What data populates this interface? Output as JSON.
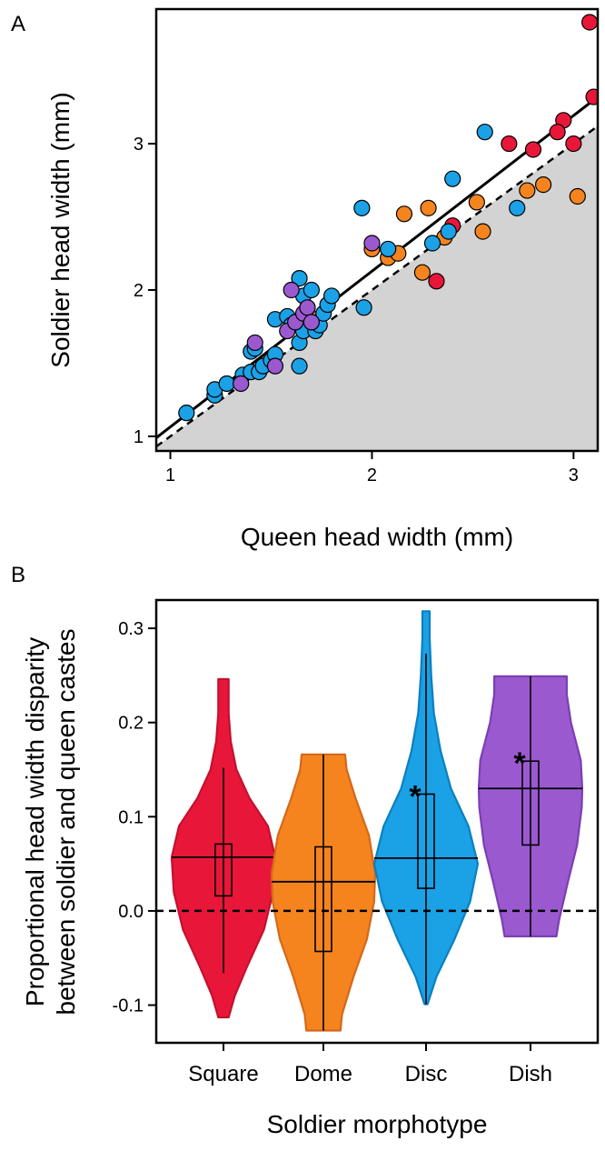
{
  "panels": {
    "a_label": "A",
    "b_label": "B"
  },
  "chart_data": [
    {
      "type": "scatter",
      "title": "",
      "xlabel": "Queen head width (mm)",
      "ylabel": "Soldier head width (mm)",
      "xlim": [
        0.93,
        3.12
      ],
      "ylim": [
        0.9,
        3.92
      ],
      "x_ticks": [
        "1",
        "2",
        "3"
      ],
      "y_ticks": [
        "1",
        "2",
        "3"
      ],
      "shaded_region": "below 1:1 line (y = x), grey",
      "reference_line": {
        "style": "dashed",
        "slope": 1,
        "intercept": 0
      },
      "fit_line": {
        "style": "solid",
        "x": [
          0.93,
          3.12
        ],
        "y": [
          0.99,
          3.32
        ]
      },
      "colors": {
        "Square": "#e8173a",
        "Dome": "#f5841f",
        "Disc": "#1aa1e6",
        "Dish": "#9b59d0"
      },
      "series": [
        {
          "group": "Square",
          "points": [
            [
              3.08,
              3.83
            ],
            [
              3.1,
              3.32
            ],
            [
              2.95,
              3.16
            ],
            [
              2.92,
              3.08
            ],
            [
              2.68,
              3.0
            ],
            [
              2.8,
              2.96
            ],
            [
              3.0,
              3.0
            ],
            [
              2.4,
              2.44
            ],
            [
              2.32,
              2.06
            ]
          ]
        },
        {
          "group": "Dome",
          "points": [
            [
              2.77,
              2.68
            ],
            [
              2.85,
              2.72
            ],
            [
              3.02,
              2.64
            ],
            [
              2.52,
              2.6
            ],
            [
              2.16,
              2.52
            ],
            [
              2.28,
              2.56
            ],
            [
              2.55,
              2.4
            ],
            [
              2.36,
              2.36
            ],
            [
              2.25,
              2.12
            ],
            [
              2.0,
              2.28
            ],
            [
              2.08,
              2.22
            ],
            [
              2.13,
              2.25
            ],
            [
              1.72,
              1.8
            ]
          ]
        },
        {
          "group": "Disc",
          "points": [
            [
              1.08,
              1.16
            ],
            [
              1.22,
              1.28
            ],
            [
              1.22,
              1.32
            ],
            [
              1.28,
              1.36
            ],
            [
              1.36,
              1.42
            ],
            [
              1.4,
              1.44
            ],
            [
              1.44,
              1.44
            ],
            [
              1.46,
              1.48
            ],
            [
              1.5,
              1.52
            ],
            [
              1.52,
              1.56
            ],
            [
              1.4,
              1.58
            ],
            [
              1.42,
              1.6
            ],
            [
              1.52,
              1.8
            ],
            [
              1.58,
              1.82
            ],
            [
              1.6,
              1.76
            ],
            [
              1.64,
              1.48
            ],
            [
              1.64,
              1.64
            ],
            [
              1.66,
              1.72
            ],
            [
              1.68,
              1.88
            ],
            [
              1.66,
              1.96
            ],
            [
              1.64,
              2.08
            ],
            [
              1.7,
              2.0
            ],
            [
              1.72,
              1.72
            ],
            [
              1.74,
              1.76
            ],
            [
              1.76,
              1.84
            ],
            [
              1.78,
              1.9
            ],
            [
              1.8,
              1.96
            ],
            [
              1.96,
              1.88
            ],
            [
              1.95,
              2.56
            ],
            [
              2.08,
              2.28
            ],
            [
              2.3,
              2.32
            ],
            [
              2.38,
              2.4
            ],
            [
              2.4,
              2.76
            ],
            [
              2.56,
              3.08
            ],
            [
              2.72,
              2.56
            ]
          ]
        },
        {
          "group": "Dish",
          "points": [
            [
              1.35,
              1.36
            ],
            [
              1.52,
              1.48
            ],
            [
              1.42,
              1.64
            ],
            [
              1.58,
              1.72
            ],
            [
              1.62,
              1.78
            ],
            [
              1.6,
              2.0
            ],
            [
              1.66,
              1.84
            ],
            [
              1.68,
              1.88
            ],
            [
              1.7,
              1.78
            ],
            [
              2.0,
              2.32
            ]
          ]
        }
      ]
    },
    {
      "type": "violin",
      "title": "",
      "xlabel": "Soldier morphotype",
      "ylabel": "Proportional head width disparity between soldier and queen castes",
      "ylabel_lines": [
        "Proportional head width disparity",
        "between soldier and queen castes"
      ],
      "ylim": [
        -0.14,
        0.33
      ],
      "y_ticks": [
        "-0.1",
        "0.0",
        "0.1",
        "0.2",
        "0.3"
      ],
      "reference_line": {
        "style": "dashed",
        "y": 0.0
      },
      "categories": [
        "Square",
        "Dome",
        "Disc",
        "Dish"
      ],
      "groups": [
        {
          "name": "Square",
          "fill": "#e8173a",
          "stroke": "#c4102e",
          "min": -0.113,
          "max": 0.246,
          "whisker_low": -0.066,
          "whisker_high": 0.152,
          "q1": 0.016,
          "median": 0.057,
          "q3": 0.071,
          "mean": 0.057,
          "significant": false,
          "profile": [
            [
              -0.113,
              0.1
            ],
            [
              -0.09,
              0.22
            ],
            [
              -0.06,
              0.45
            ],
            [
              -0.02,
              0.78
            ],
            [
              0.02,
              0.96
            ],
            [
              0.057,
              1.0
            ],
            [
              0.09,
              0.86
            ],
            [
              0.12,
              0.5
            ],
            [
              0.15,
              0.25
            ],
            [
              0.18,
              0.14
            ],
            [
              0.21,
              0.1
            ],
            [
              0.246,
              0.1
            ]
          ]
        },
        {
          "name": "Dome",
          "fill": "#f5841f",
          "stroke": "#d4681a",
          "min": -0.127,
          "max": 0.166,
          "whisker_low": -0.127,
          "whisker_high": 0.166,
          "q1": -0.043,
          "median": 0.031,
          "q3": 0.068,
          "mean": 0.031,
          "significant": false,
          "profile": [
            [
              -0.127,
              0.33
            ],
            [
              -0.11,
              0.36
            ],
            [
              -0.07,
              0.58
            ],
            [
              -0.03,
              0.84
            ],
            [
              0.01,
              0.98
            ],
            [
              0.04,
              1.0
            ],
            [
              0.08,
              0.88
            ],
            [
              0.12,
              0.62
            ],
            [
              0.15,
              0.45
            ],
            [
              0.166,
              0.42
            ]
          ]
        },
        {
          "name": "Disc",
          "fill": "#1aa1e6",
          "stroke": "#0d7fbf",
          "min": -0.099,
          "max": 0.318,
          "whisker_low": -0.099,
          "whisker_high": 0.273,
          "q1": 0.024,
          "median": 0.056,
          "q3": 0.124,
          "mean": 0.056,
          "significant": true,
          "profile": [
            [
              -0.099,
              0.03
            ],
            [
              -0.07,
              0.2
            ],
            [
              -0.03,
              0.55
            ],
            [
              0.01,
              0.85
            ],
            [
              0.05,
              1.0
            ],
            [
              0.09,
              0.82
            ],
            [
              0.13,
              0.48
            ],
            [
              0.17,
              0.28
            ],
            [
              0.21,
              0.15
            ],
            [
              0.25,
              0.1
            ],
            [
              0.29,
              0.07
            ],
            [
              0.318,
              0.07
            ]
          ]
        },
        {
          "name": "Dish",
          "fill": "#9b59d0",
          "stroke": "#7a3fb2",
          "min": -0.027,
          "max": 0.249,
          "whisker_low": -0.027,
          "whisker_high": 0.249,
          "q1": 0.07,
          "median": 0.13,
          "q3": 0.159,
          "mean": 0.13,
          "significant": true,
          "profile": [
            [
              -0.027,
              0.5
            ],
            [
              -0.01,
              0.55
            ],
            [
              0.03,
              0.72
            ],
            [
              0.07,
              0.9
            ],
            [
              0.11,
              0.99
            ],
            [
              0.13,
              1.0
            ],
            [
              0.16,
              0.97
            ],
            [
              0.2,
              0.78
            ],
            [
              0.23,
              0.7
            ],
            [
              0.249,
              0.7
            ]
          ]
        }
      ],
      "significance_marker": "*"
    }
  ]
}
